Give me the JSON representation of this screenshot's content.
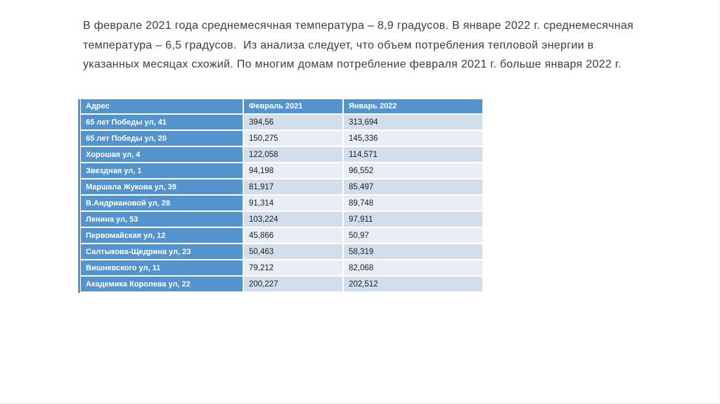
{
  "intro": {
    "lines": [
      "В феврале 2021 года среднемесячная температура – 8,9 градусов. В январе 2022 г. среднемесячная",
      "температура – 6,5 градусов.  Из анализа следует, что объем потребления тепловой энергии в",
      "указанных месяцах схожий. По многим домам потребление февраля 2021 г. больше января 2022 г."
    ]
  },
  "table": {
    "columns": [
      "Адрес",
      "Февраль 2021",
      "Январь 2022"
    ],
    "rows": [
      {
        "address": "65 лет Победы ул, 41",
        "feb2021": "394,56",
        "jan2022": "313,694"
      },
      {
        "address": "65 лет Победы ул, 20",
        "feb2021": "150,275",
        "jan2022": "145,336"
      },
      {
        "address": "Хорошая ул, 4",
        "feb2021": "122,058",
        "jan2022": "114,571"
      },
      {
        "address": "Звездная ул, 1",
        "feb2021": "94,198",
        "jan2022": "96,552"
      },
      {
        "address": "Маршала Жукова ул, 39",
        "feb2021": "81,917",
        "jan2022": "85,497"
      },
      {
        "address": "В.Андриановой ул, 28",
        "feb2021": "91,314",
        "jan2022": "89,748"
      },
      {
        "address": "Ленина ул, 53",
        "feb2021": "103,224",
        "jan2022": "97,911"
      },
      {
        "address": "Первомайская ул, 12",
        "feb2021": "45,866",
        "jan2022": "50,97"
      },
      {
        "address": "Салтыкова-Щедрина ул, 23",
        "feb2021": "50,463",
        "jan2022": "58,319"
      },
      {
        "address": "Вишневского ул, 11",
        "feb2021": "79,212",
        "jan2022": "82,068"
      },
      {
        "address": "Академика Королева ул, 22",
        "feb2021": "200,227",
        "jan2022": "202,512"
      }
    ]
  },
  "colors": {
    "accent_blue": "#5494CE",
    "row_odd": "#D3DEED",
    "row_even": "#E9EDF5",
    "header_text": "#FFFFFF",
    "body_text": "#3D3D3D"
  }
}
